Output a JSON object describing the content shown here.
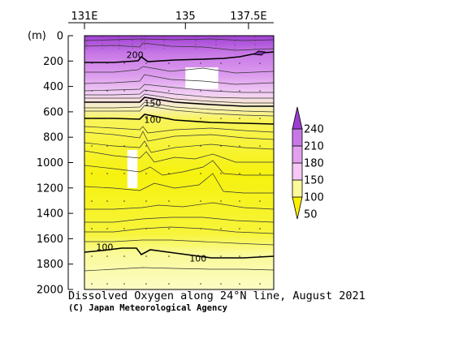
{
  "chart_data": {
    "type": "heatmap",
    "title": "Dissolved Oxygen along 24°N line, August 2021",
    "credit": "(C) Japan Meteorological Agency",
    "x_axis": {
      "ticks": [
        "131E",
        "135",
        "137.5E"
      ],
      "tick_values": [
        131,
        135,
        137.5
      ],
      "range": [
        131,
        138.5
      ]
    },
    "y_axis": {
      "unit_label": "(m)",
      "ticks": [
        0,
        200,
        400,
        600,
        800,
        1000,
        1200,
        1400,
        1600,
        1800,
        2000
      ],
      "range": [
        0,
        2000
      ],
      "inverted": true
    },
    "colorbar": {
      "levels": [
        50,
        100,
        150,
        180,
        210,
        240
      ],
      "labels": [
        "240",
        "210",
        "180",
        "150",
        "100",
        "50"
      ],
      "colors": [
        "#f8f000",
        "#fafa9a",
        "#f5c8f5",
        "#e2a0ee",
        "#c878e6",
        "#9c3cd2"
      ]
    },
    "contour_labels": [
      {
        "text": "200",
        "x": 133.0,
        "depth": 150
      },
      {
        "text": "150",
        "x": 133.7,
        "depth": 530
      },
      {
        "text": "100",
        "x": 133.7,
        "depth": 660
      },
      {
        "text": "100",
        "x": 131.8,
        "depth": 1665
      },
      {
        "text": "100",
        "x": 135.5,
        "depth": 1755
      }
    ],
    "missing_regions": [
      {
        "x0": 135.0,
        "x1": 136.3,
        "depth0": 250,
        "depth1": 420
      },
      {
        "x0": 132.7,
        "x1": 133.1,
        "depth0": 900,
        "depth1": 1200
      }
    ]
  }
}
